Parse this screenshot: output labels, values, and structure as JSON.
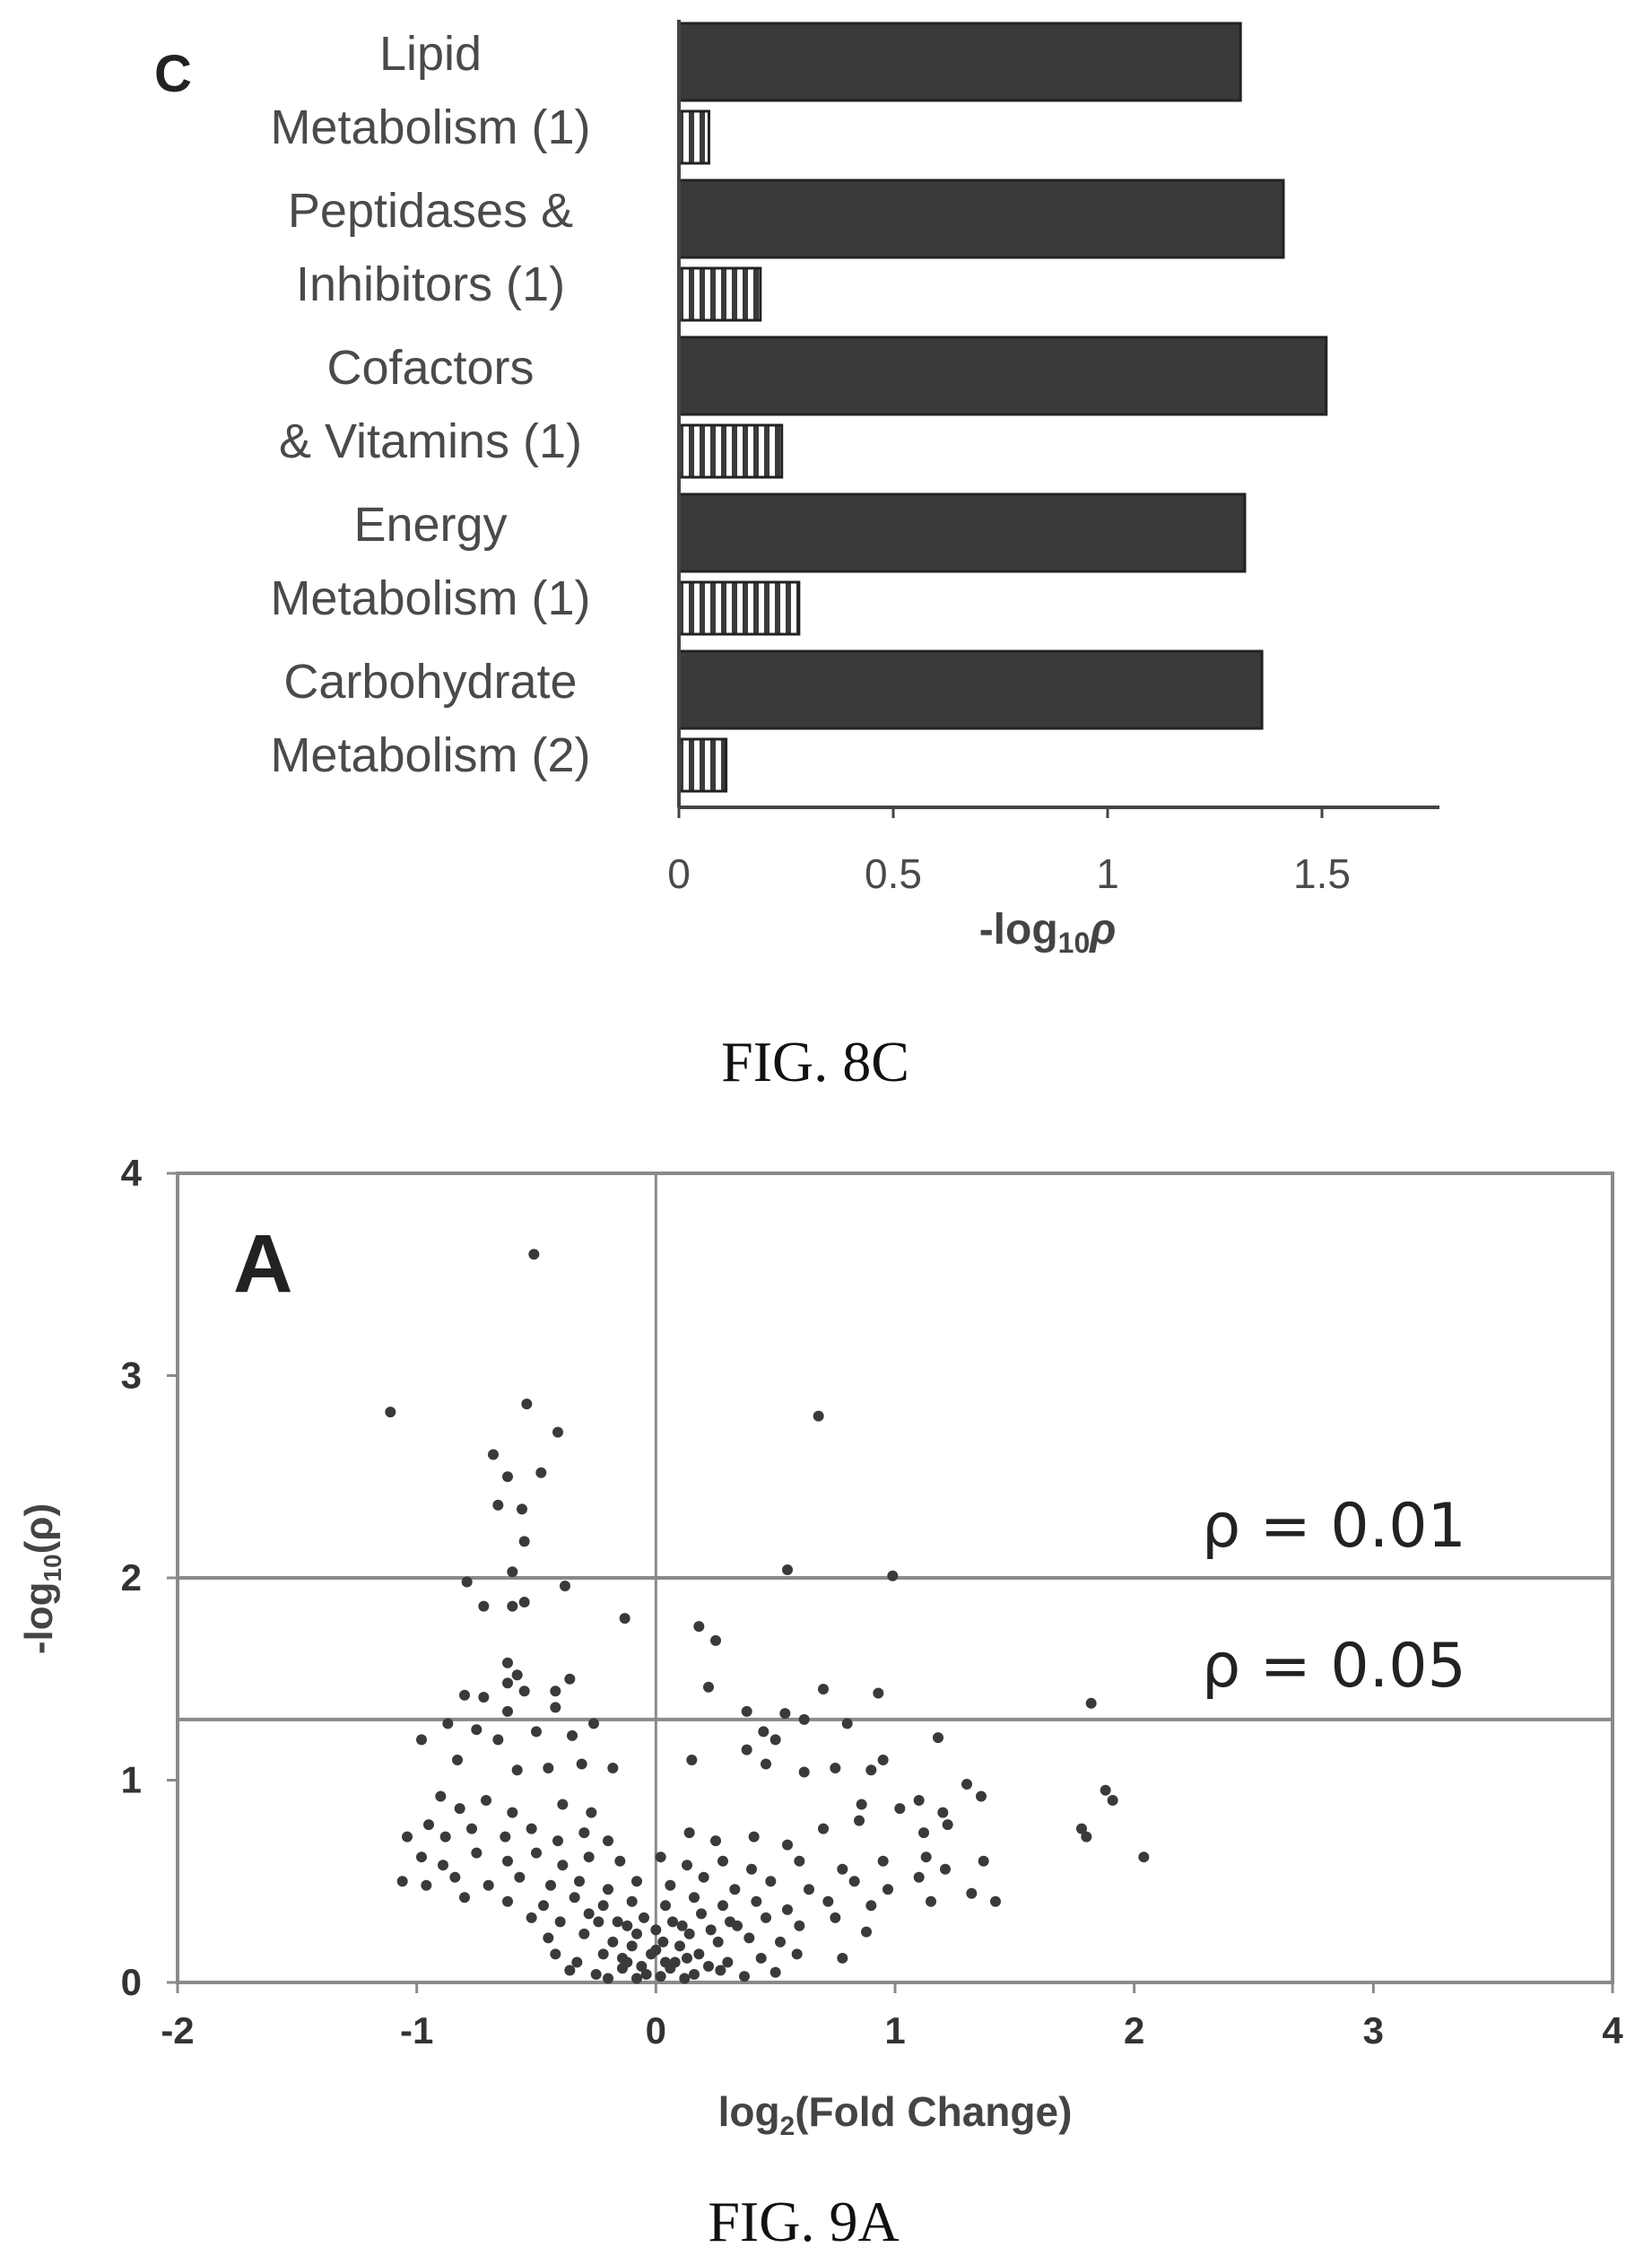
{
  "chart_data": [
    {
      "type": "bar",
      "panel_label": "C",
      "orientation": "horizontal",
      "categories": [
        [
          "Lipid",
          "Metabolism (1)"
        ],
        [
          "Peptidases &",
          "Inhibitors (1)"
        ],
        [
          "Cofactors",
          "& Vitamins (1)"
        ],
        [
          "Energy",
          "Metabolism (1)"
        ],
        [
          "Carbohydrate",
          "Metabolism (2)"
        ]
      ],
      "series": [
        {
          "style": "solid-dark",
          "color": "#3a3a3a",
          "values": [
            1.31,
            1.41,
            1.51,
            1.32,
            1.36
          ]
        },
        {
          "style": "vertical-hatch",
          "color": "#ffffff",
          "values": [
            0.07,
            0.19,
            0.24,
            0.28,
            0.11
          ]
        }
      ],
      "xlabel": {
        "prefix": "-log",
        "sub": "10",
        "suffix": "ρ"
      },
      "xticks": [
        "0",
        "0.5",
        "1",
        "1.5"
      ],
      "xlim": [
        0,
        1.75
      ],
      "caption": "FIG. 8C"
    },
    {
      "type": "scatter",
      "panel_label": "A",
      "xlim": [
        -2,
        4
      ],
      "ylim": [
        0,
        4
      ],
      "xticks": [
        "-2",
        "-1",
        "0",
        "1",
        "2",
        "3",
        "4"
      ],
      "yticks": [
        "0",
        "1",
        "2",
        "3",
        "4"
      ],
      "xlabel": {
        "prefix": "log",
        "sub": "2",
        "suffix": "(Fold Change)"
      },
      "ylabel": {
        "prefix": "-log",
        "sub": "10",
        "suffix": "(ρ)"
      },
      "reference_lines": [
        {
          "orientation": "horizontal",
          "y": 2.0,
          "label": "ρ = 0.01"
        },
        {
          "orientation": "horizontal",
          "y": 1.3,
          "label": "ρ = 0.05"
        },
        {
          "orientation": "vertical",
          "x": 0
        }
      ],
      "points": [
        [
          -0.51,
          3.6
        ],
        [
          -1.11,
          2.82
        ],
        [
          -0.54,
          2.86
        ],
        [
          0.68,
          2.8
        ],
        [
          -0.68,
          2.61
        ],
        [
          -0.41,
          2.72
        ],
        [
          -0.62,
          2.5
        ],
        [
          -0.48,
          2.52
        ],
        [
          -0.66,
          2.36
        ],
        [
          -0.56,
          2.34
        ],
        [
          -0.55,
          2.18
        ],
        [
          -0.6,
          2.03
        ],
        [
          -0.79,
          1.98
        ],
        [
          -0.38,
          1.96
        ],
        [
          0.55,
          2.04
        ],
        [
          0.99,
          2.01
        ],
        [
          -0.72,
          1.86
        ],
        [
          -0.6,
          1.86
        ],
        [
          -0.55,
          1.88
        ],
        [
          -0.13,
          1.8
        ],
        [
          0.18,
          1.76
        ],
        [
          0.25,
          1.69
        ],
        [
          -0.62,
          1.58
        ],
        [
          -0.58,
          1.52
        ],
        [
          -0.62,
          1.48
        ],
        [
          -0.36,
          1.5
        ],
        [
          -0.42,
          1.44
        ],
        [
          -0.55,
          1.44
        ],
        [
          -0.8,
          1.42
        ],
        [
          -0.72,
          1.41
        ],
        [
          0.22,
          1.46
        ],
        [
          0.7,
          1.45
        ],
        [
          0.93,
          1.43
        ],
        [
          1.82,
          1.38
        ],
        [
          -0.62,
          1.34
        ],
        [
          -0.42,
          1.36
        ],
        [
          0.54,
          1.33
        ],
        [
          0.38,
          1.34
        ],
        [
          0.62,
          1.3
        ],
        [
          0.8,
          1.28
        ],
        [
          -0.98,
          1.2
        ],
        [
          -0.87,
          1.28
        ],
        [
          -0.75,
          1.25
        ],
        [
          -0.66,
          1.2
        ],
        [
          -0.5,
          1.24
        ],
        [
          -0.35,
          1.22
        ],
        [
          -0.26,
          1.28
        ],
        [
          0.45,
          1.24
        ],
        [
          0.5,
          1.2
        ],
        [
          1.18,
          1.21
        ],
        [
          0.95,
          1.1
        ],
        [
          0.9,
          1.05
        ],
        [
          0.75,
          1.06
        ],
        [
          0.62,
          1.04
        ],
        [
          0.46,
          1.08
        ],
        [
          0.38,
          1.15
        ],
        [
          0.15,
          1.1
        ],
        [
          -0.83,
          1.1
        ],
        [
          -0.58,
          1.05
        ],
        [
          -0.45,
          1.06
        ],
        [
          -0.31,
          1.08
        ],
        [
          -0.18,
          1.06
        ],
        [
          1.3,
          0.98
        ],
        [
          1.36,
          0.92
        ],
        [
          1.88,
          0.95
        ],
        [
          1.91,
          0.9
        ],
        [
          1.2,
          0.84
        ],
        [
          1.1,
          0.9
        ],
        [
          1.02,
          0.86
        ],
        [
          0.86,
          0.88
        ],
        [
          -0.9,
          0.92
        ],
        [
          -0.82,
          0.86
        ],
        [
          -0.71,
          0.9
        ],
        [
          -0.6,
          0.84
        ],
        [
          -0.39,
          0.88
        ],
        [
          -0.27,
          0.84
        ],
        [
          1.78,
          0.76
        ],
        [
          1.8,
          0.72
        ],
        [
          2.04,
          0.62
        ],
        [
          1.22,
          0.78
        ],
        [
          1.12,
          0.74
        ],
        [
          0.85,
          0.8
        ],
        [
          0.7,
          0.76
        ],
        [
          -1.04,
          0.72
        ],
        [
          -0.95,
          0.78
        ],
        [
          -0.88,
          0.72
        ],
        [
          -0.77,
          0.76
        ],
        [
          -0.63,
          0.72
        ],
        [
          -0.52,
          0.76
        ],
        [
          -0.41,
          0.7
        ],
        [
          -0.3,
          0.74
        ],
        [
          -0.2,
          0.7
        ],
        [
          0.14,
          0.74
        ],
        [
          0.25,
          0.7
        ],
        [
          0.41,
          0.72
        ],
        [
          0.55,
          0.68
        ],
        [
          -0.98,
          0.62
        ],
        [
          -0.89,
          0.58
        ],
        [
          -0.75,
          0.64
        ],
        [
          -0.62,
          0.6
        ],
        [
          -0.5,
          0.64
        ],
        [
          -0.39,
          0.58
        ],
        [
          -0.28,
          0.62
        ],
        [
          -0.15,
          0.6
        ],
        [
          0.02,
          0.62
        ],
        [
          0.13,
          0.58
        ],
        [
          0.28,
          0.6
        ],
        [
          0.4,
          0.56
        ],
        [
          0.6,
          0.6
        ],
        [
          0.78,
          0.56
        ],
        [
          0.95,
          0.6
        ],
        [
          1.13,
          0.62
        ],
        [
          1.21,
          0.56
        ],
        [
          1.37,
          0.6
        ],
        [
          -1.06,
          0.5
        ],
        [
          -0.96,
          0.48
        ],
        [
          -0.84,
          0.52
        ],
        [
          -0.7,
          0.48
        ],
        [
          -0.57,
          0.52
        ],
        [
          -0.44,
          0.48
        ],
        [
          -0.32,
          0.5
        ],
        [
          -0.2,
          0.46
        ],
        [
          -0.08,
          0.5
        ],
        [
          0.06,
          0.48
        ],
        [
          0.2,
          0.52
        ],
        [
          0.33,
          0.46
        ],
        [
          0.48,
          0.5
        ],
        [
          0.64,
          0.46
        ],
        [
          0.83,
          0.5
        ],
        [
          0.97,
          0.46
        ],
        [
          1.1,
          0.52
        ],
        [
          1.32,
          0.44
        ],
        [
          1.42,
          0.4
        ],
        [
          1.15,
          0.4
        ],
        [
          -0.8,
          0.42
        ],
        [
          -0.62,
          0.4
        ],
        [
          -0.47,
          0.38
        ],
        [
          -0.34,
          0.42
        ],
        [
          -0.22,
          0.38
        ],
        [
          -0.1,
          0.4
        ],
        [
          0.04,
          0.38
        ],
        [
          0.16,
          0.42
        ],
        [
          0.28,
          0.38
        ],
        [
          0.42,
          0.4
        ],
        [
          0.55,
          0.36
        ],
        [
          0.72,
          0.4
        ],
        [
          0.9,
          0.38
        ],
        [
          -0.52,
          0.32
        ],
        [
          -0.4,
          0.3
        ],
        [
          -0.28,
          0.34
        ],
        [
          -0.16,
          0.3
        ],
        [
          -0.05,
          0.32
        ],
        [
          0.07,
          0.3
        ],
        [
          0.19,
          0.34
        ],
        [
          0.31,
          0.3
        ],
        [
          0.46,
          0.32
        ],
        [
          0.6,
          0.28
        ],
        [
          0.75,
          0.32
        ],
        [
          -0.45,
          0.22
        ],
        [
          -0.3,
          0.24
        ],
        [
          -0.18,
          0.2
        ],
        [
          -0.08,
          0.24
        ],
        [
          0.03,
          0.2
        ],
        [
          0.14,
          0.24
        ],
        [
          0.26,
          0.2
        ],
        [
          0.39,
          0.22
        ],
        [
          0.52,
          0.2
        ],
        [
          0.88,
          0.25
        ],
        [
          -0.42,
          0.14
        ],
        [
          -0.33,
          0.1
        ],
        [
          -0.22,
          0.14
        ],
        [
          -0.12,
          0.1
        ],
        [
          -0.02,
          0.14
        ],
        [
          0.08,
          0.1
        ],
        [
          0.18,
          0.14
        ],
        [
          0.3,
          0.1
        ],
        [
          0.44,
          0.12
        ],
        [
          0.59,
          0.14
        ],
        [
          0.78,
          0.12
        ],
        [
          -0.36,
          0.06
        ],
        [
          -0.25,
          0.04
        ],
        [
          -0.14,
          0.07
        ],
        [
          -0.04,
          0.04
        ],
        [
          0.06,
          0.07
        ],
        [
          0.16,
          0.04
        ],
        [
          0.27,
          0.06
        ],
        [
          0.37,
          0.03
        ],
        [
          0.5,
          0.05
        ],
        [
          -0.2,
          0.02
        ],
        [
          -0.08,
          0.02
        ],
        [
          0.02,
          0.03
        ],
        [
          0.12,
          0.02
        ],
        [
          -0.1,
          0.18
        ],
        [
          0.0,
          0.16
        ],
        [
          0.1,
          0.18
        ],
        [
          -0.06,
          0.08
        ],
        [
          0.04,
          0.1
        ],
        [
          0.22,
          0.08
        ],
        [
          -0.14,
          0.12
        ],
        [
          0.13,
          0.12
        ],
        [
          -0.24,
          0.3
        ],
        [
          -0.12,
          0.28
        ],
        [
          0.0,
          0.26
        ],
        [
          0.11,
          0.28
        ],
        [
          0.23,
          0.26
        ],
        [
          0.34,
          0.28
        ]
      ],
      "caption": "FIG. 9A"
    }
  ]
}
